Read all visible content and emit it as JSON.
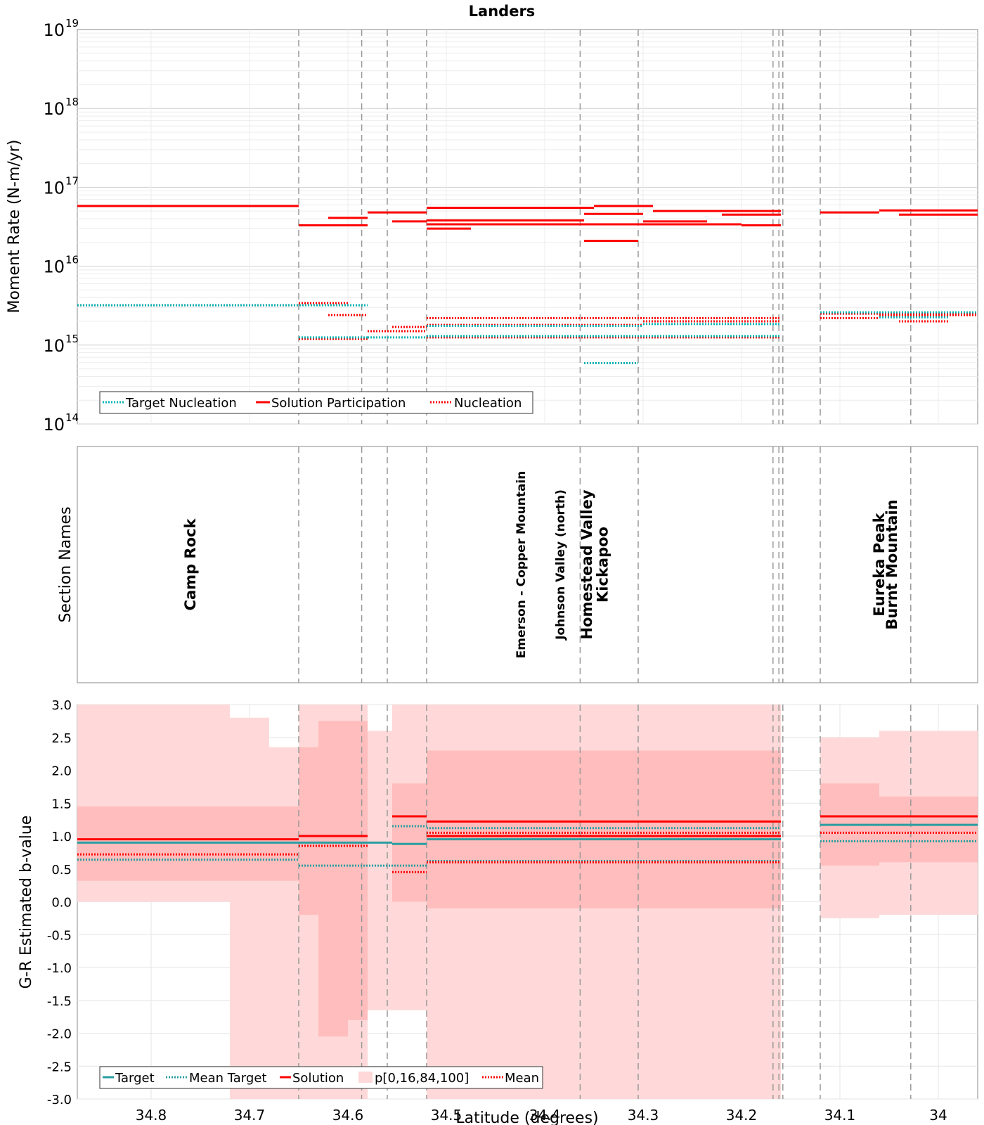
{
  "chart_data": [
    {
      "panel": "moment-rate",
      "type": "line",
      "title": "Landers",
      "ylabel": "Moment Rate (N-m/yr)",
      "xlabel": "",
      "yscale": "log",
      "ylim_exp": [
        14,
        19
      ],
      "y_tick_base": "10",
      "y_tick_exponents": [
        "14",
        "15",
        "16",
        "17",
        "18",
        "19"
      ],
      "xlim": [
        34.875,
        33.96
      ],
      "legend": {
        "placement": "bottom-left",
        "entries": [
          "Target Nucleation",
          "Solution Participation",
          "Nucleation"
        ]
      },
      "series": [
        {
          "name": "Solution Participation",
          "segments": [
            [
              34.875,
              34.65,
              5.8e+16
            ],
            [
              34.65,
              34.58,
              3.3e+16
            ],
            [
              34.62,
              34.58,
              4.1e+16
            ],
            [
              34.58,
              34.52,
              4.8e+16
            ],
            [
              34.555,
              34.52,
              3.7e+16
            ],
            [
              34.52,
              34.475,
              3e+16
            ],
            [
              34.52,
              34.35,
              5.5e+16
            ],
            [
              34.52,
              34.36,
              3.8e+16
            ],
            [
              34.52,
              34.2,
              3.4e+16
            ],
            [
              34.36,
              34.305,
              2.1e+16
            ],
            [
              34.36,
              34.3,
              4.6e+16
            ],
            [
              34.35,
              34.29,
              5.8e+16
            ],
            [
              34.3,
              34.235,
              3.7e+16
            ],
            [
              34.29,
              34.16,
              5e+16
            ],
            [
              34.22,
              34.16,
              4.5e+16
            ],
            [
              34.2,
              34.16,
              3.3e+16
            ],
            [
              34.12,
              34.06,
              4.8e+16
            ],
            [
              34.06,
              33.96,
              5.1e+16
            ],
            [
              34.04,
              33.96,
              4.5e+16
            ]
          ]
        },
        {
          "name": "Nucleation",
          "segments": [
            [
              34.875,
              34.65,
              3200000000000000.0
            ],
            [
              34.65,
              34.6,
              3400000000000000.0
            ],
            [
              34.62,
              34.58,
              2400000000000000.0
            ],
            [
              34.65,
              34.58,
              1200000000000000.0
            ],
            [
              34.58,
              34.52,
              1500000000000000.0
            ],
            [
              34.555,
              34.52,
              1700000000000000.0
            ],
            [
              34.52,
              34.16,
              2200000000000000.0
            ],
            [
              34.52,
              34.16,
              1250000000000000.0
            ],
            [
              34.52,
              34.3,
              1800000000000000.0
            ],
            [
              34.36,
              34.305,
              590000000000000.0
            ],
            [
              34.3,
              34.16,
              2000000000000000.0
            ],
            [
              34.12,
              33.96,
              2500000000000000.0
            ],
            [
              34.12,
              34.06,
              2200000000000000.0
            ],
            [
              34.06,
              33.96,
              2400000000000000.0
            ],
            [
              34.04,
              33.99,
              2000000000000000.0
            ]
          ]
        },
        {
          "name": "Target Nucleation",
          "segments": [
            [
              34.875,
              34.58,
              3200000000000000.0
            ],
            [
              34.65,
              34.58,
              1250000000000000.0
            ],
            [
              34.58,
              34.52,
              1250000000000000.0
            ],
            [
              34.52,
              34.16,
              1300000000000000.0
            ],
            [
              34.52,
              34.3,
              1750000000000000.0
            ],
            [
              34.3,
              34.16,
              1850000000000000.0
            ],
            [
              34.36,
              34.305,
              590000000000000.0
            ],
            [
              34.12,
              33.96,
              2600000000000000.0
            ],
            [
              34.06,
              33.99,
              2250000000000000.0
            ]
          ]
        }
      ]
    },
    {
      "panel": "section-names",
      "type": "table",
      "ylabel": "Section Names",
      "sections": [
        {
          "name": "Camp Rock",
          "lat": 34.755
        },
        {
          "name": "Emerson - Copper Mountain",
          "lat": 34.42
        },
        {
          "name": "Johnson Valley (north)",
          "lat": 34.38
        },
        {
          "name": "Homestead Valley",
          "lat": 34.352
        },
        {
          "name": "Kickapoo",
          "lat": 34.336
        },
        {
          "name": "Eureka Peak",
          "lat": 34.055
        },
        {
          "name": "Burnt Mountain",
          "lat": 34.042
        }
      ]
    },
    {
      "panel": "b-value",
      "type": "line",
      "ylabel": "G-R Estimated b-value",
      "xlabel": "Latitude (degrees)",
      "ylim": [
        -3.0,
        3.0
      ],
      "xlim": [
        34.875,
        33.96
      ],
      "y_ticks": [
        "3.0",
        "2.5",
        "2.0",
        "1.5",
        "1.0",
        "0.5",
        "0.0",
        "-0.5",
        "-1.0",
        "-1.5",
        "-2.0",
        "-2.5",
        "-3.0"
      ],
      "x_ticks": [
        "34.8",
        "34.7",
        "34.6",
        "34.5",
        "34.4",
        "34.3",
        "34.2",
        "34.1",
        "34"
      ],
      "legend": {
        "placement": "bottom-left",
        "entries": [
          "Target",
          "Mean Target",
          "Solution",
          "p[0,16,84,100]",
          "Mean"
        ]
      },
      "band_outer": [
        [
          34.875,
          34.72,
          0.0,
          3.0
        ],
        [
          34.72,
          34.68,
          -3.0,
          2.8
        ],
        [
          34.68,
          34.65,
          -3.0,
          2.35
        ],
        [
          34.65,
          34.58,
          -3.0,
          3.0
        ],
        [
          34.58,
          34.555,
          -1.65,
          2.6
        ],
        [
          34.555,
          34.52,
          -1.65,
          3.0
        ],
        [
          34.52,
          34.16,
          -3.0,
          3.0
        ],
        [
          34.12,
          34.06,
          -0.25,
          2.5
        ],
        [
          34.06,
          33.96,
          -0.2,
          2.6
        ]
      ],
      "band_inner": [
        [
          34.875,
          34.65,
          0.32,
          1.45
        ],
        [
          34.65,
          34.63,
          -0.2,
          2.35
        ],
        [
          34.63,
          34.6,
          -2.05,
          2.75
        ],
        [
          34.6,
          34.58,
          -1.8,
          2.75
        ],
        [
          34.555,
          34.52,
          0.0,
          1.8
        ],
        [
          34.52,
          34.16,
          -0.1,
          2.3
        ],
        [
          34.12,
          34.06,
          0.55,
          1.8
        ],
        [
          34.06,
          33.96,
          0.6,
          1.6
        ]
      ],
      "solution": [
        [
          34.875,
          34.65,
          0.95
        ],
        [
          34.65,
          34.58,
          1.0
        ],
        [
          34.555,
          34.52,
          1.3
        ],
        [
          34.52,
          34.16,
          1.22
        ],
        [
          34.52,
          34.16,
          1.0
        ],
        [
          34.12,
          33.96,
          1.3
        ]
      ],
      "mean": [
        [
          34.875,
          34.65,
          0.72
        ],
        [
          34.65,
          34.58,
          0.85
        ],
        [
          34.555,
          34.52,
          0.45
        ],
        [
          34.52,
          34.16,
          0.6
        ],
        [
          34.52,
          34.16,
          1.05
        ],
        [
          34.12,
          33.96,
          1.05
        ]
      ],
      "target": [
        [
          34.875,
          34.555,
          0.9
        ],
        [
          34.555,
          34.52,
          0.88
        ],
        [
          34.52,
          34.16,
          0.95
        ],
        [
          34.12,
          33.96,
          1.17
        ]
      ],
      "mean_target": [
        [
          34.875,
          34.65,
          0.64
        ],
        [
          34.65,
          34.52,
          0.55
        ],
        [
          34.555,
          34.52,
          1.15
        ],
        [
          34.52,
          34.16,
          0.62
        ],
        [
          34.52,
          34.16,
          1.12
        ],
        [
          34.12,
          33.96,
          0.92
        ]
      ]
    }
  ],
  "section_boundaries": [
    34.65,
    34.586,
    34.56,
    34.52,
    34.364,
    34.305,
    34.168,
    34.162,
    34.158,
    34.12,
    34.028
  ],
  "colors": {
    "solution": "#ff0000",
    "target": "#00b3b3",
    "target_b": "#2a9ea0",
    "band_outer": "#ffd9d9",
    "band_inner": "#ffb3b3",
    "grid": "#e6e6e6",
    "boundary": "#999999"
  }
}
